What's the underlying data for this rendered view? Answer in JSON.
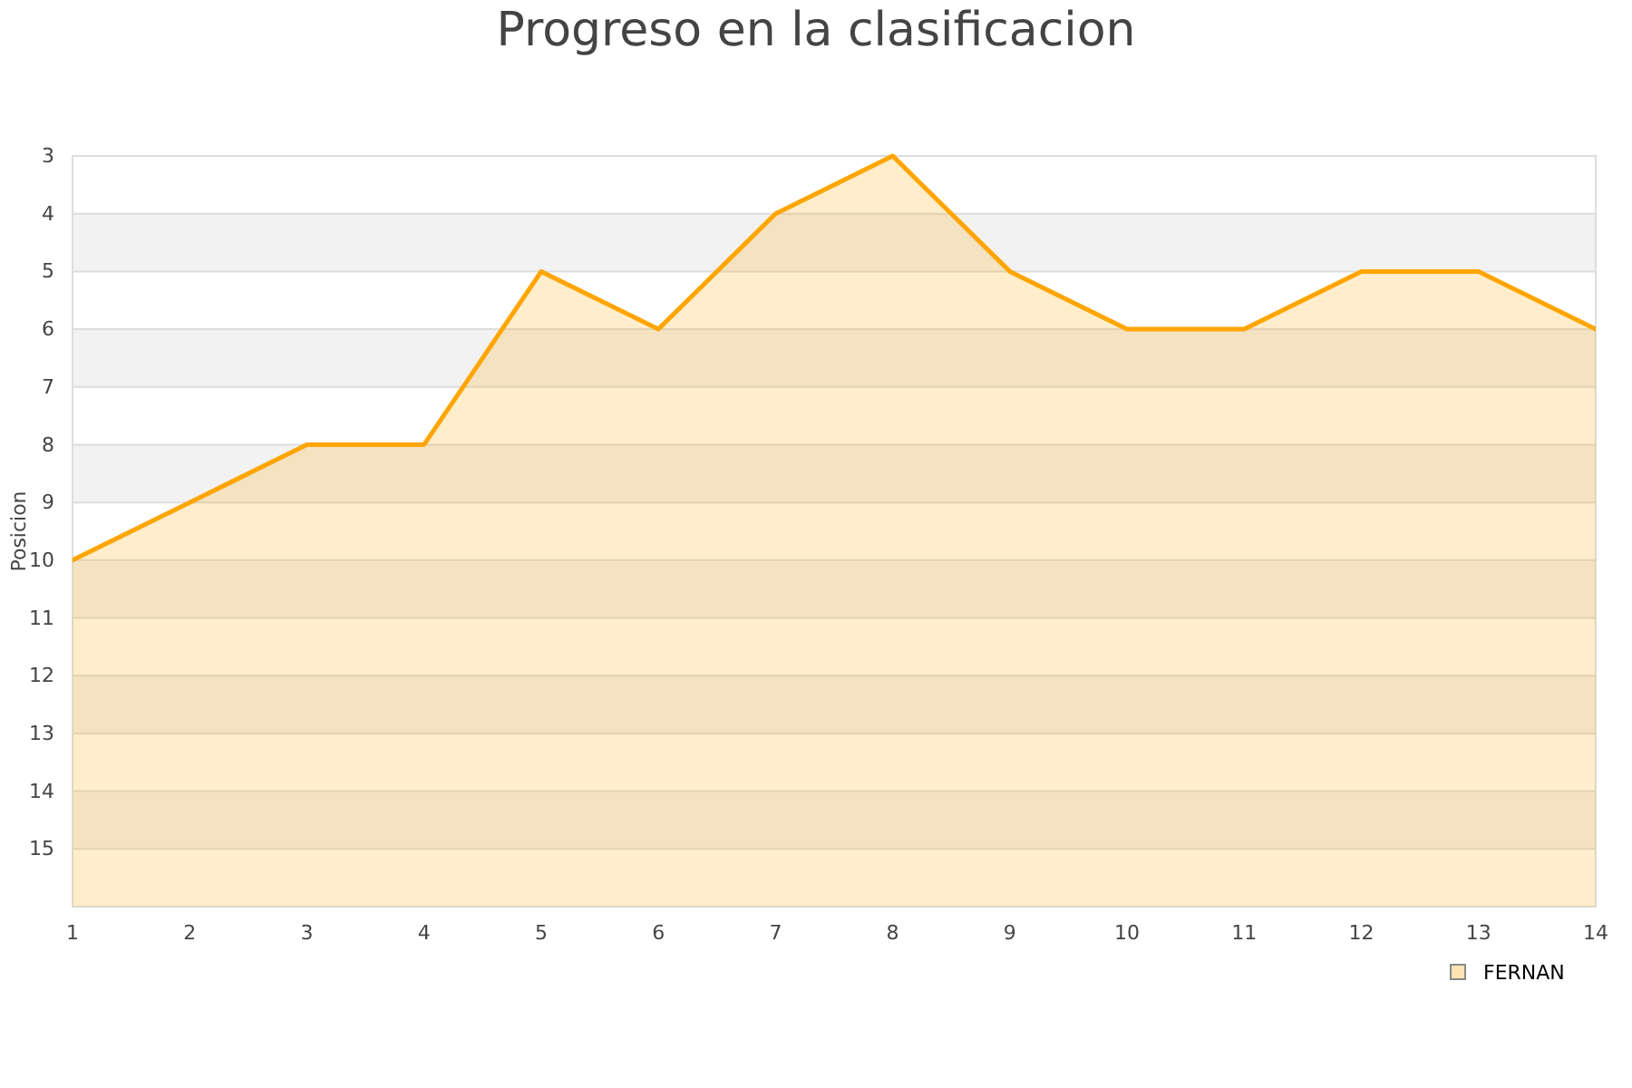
{
  "chart_data": {
    "type": "area",
    "title": "Progreso en la clasificacion",
    "ylabel": "Posicion",
    "x": [
      1,
      2,
      3,
      4,
      5,
      6,
      7,
      8,
      9,
      10,
      11,
      12,
      13,
      14
    ],
    "series": [
      {
        "name": "FERNAN",
        "color": "#ffa500",
        "values": [
          10,
          9,
          8,
          8,
          5,
          6,
          4,
          3,
          5,
          6,
          6,
          5,
          5,
          6
        ]
      }
    ],
    "xlim": [
      1,
      14
    ],
    "xticks": [
      1,
      2,
      3,
      4,
      5,
      6,
      7,
      8,
      9,
      10,
      11,
      12,
      13,
      14
    ],
    "ylim": [
      16,
      3
    ],
    "yticks": [
      3,
      4,
      5,
      6,
      7,
      8,
      9,
      10,
      11,
      12,
      13,
      14,
      15
    ],
    "bands": [
      {
        "axis": "y",
        "from": 4,
        "to": 5,
        "color": "#f2f2f2"
      },
      {
        "axis": "y",
        "from": 6,
        "to": 7,
        "color": "#f2f2f2"
      },
      {
        "axis": "y",
        "from": 8,
        "to": 9,
        "color": "#f2f2f2"
      },
      {
        "axis": "y",
        "from": 10,
        "to": 11,
        "color": "#f2f2f2"
      },
      {
        "axis": "y",
        "from": 12,
        "to": 13,
        "color": "#f2f2f2"
      },
      {
        "axis": "y",
        "from": 14,
        "to": 15,
        "color": "#f2f2f2"
      }
    ],
    "grid": "y",
    "legend": "bottom right"
  }
}
